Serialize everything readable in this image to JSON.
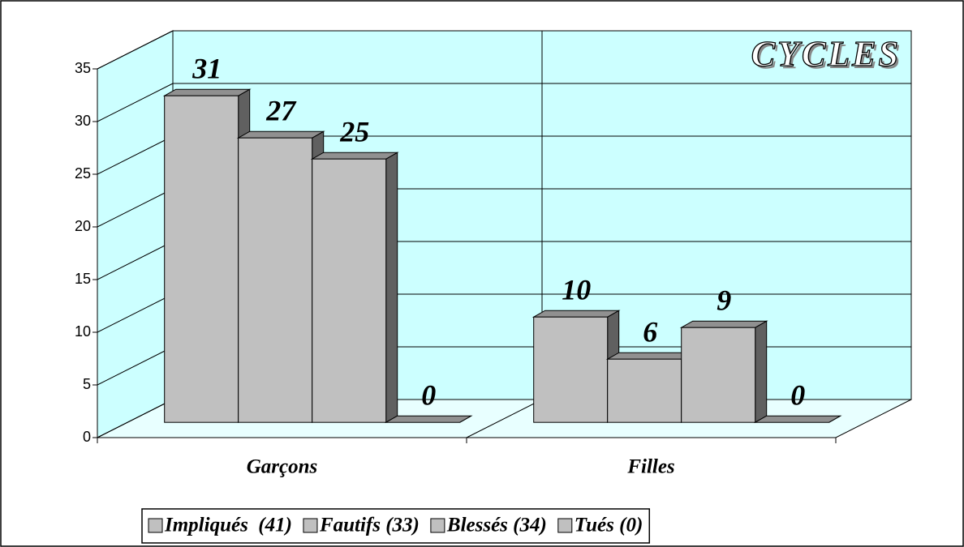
{
  "chart_data": {
    "type": "bar3d",
    "title": "CYCLES",
    "categories": [
      "Garçons",
      "Filles"
    ],
    "series": [
      {
        "name": "Impliqués  (41)",
        "color": "#c0c0c0",
        "values": [
          31,
          10
        ]
      },
      {
        "name": "Fautifs (33)",
        "color": "#c0c0c0",
        "values": [
          27,
          6
        ]
      },
      {
        "name": "Blessés (34)",
        "color": "#c0c0c0",
        "values": [
          25,
          9
        ]
      },
      {
        "name": "Tués (0)",
        "color": "#c0c0c0",
        "values": [
          0,
          0
        ]
      }
    ],
    "ylim": [
      0,
      35
    ],
    "yticks": [
      0,
      5,
      10,
      15,
      20,
      25,
      30,
      35
    ],
    "grid": true,
    "legend": "bottom"
  }
}
